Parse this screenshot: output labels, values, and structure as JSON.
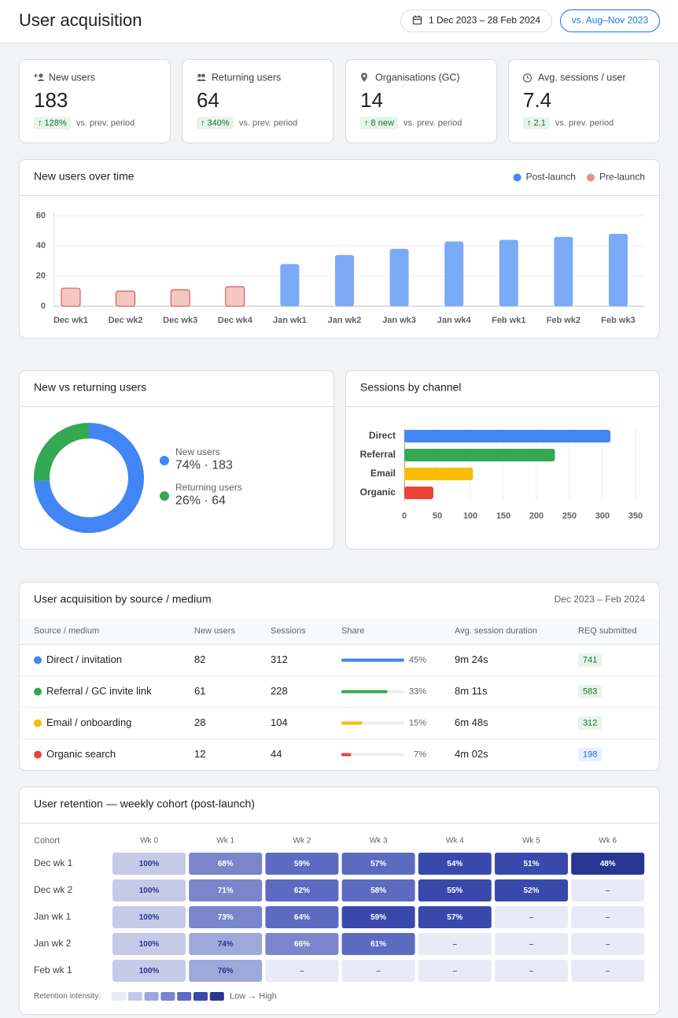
{
  "header": {
    "title": "User acquisition",
    "date_range": "1 Dec 2023 – 28 Feb 2024",
    "compare": "vs. Aug–Nov 2023"
  },
  "kpis": [
    {
      "label": "New users",
      "value": 183,
      "delta": "↑ 128%",
      "note": "vs. prev. period"
    },
    {
      "label": "Returning users",
      "value": 64,
      "delta": "↑ 340%",
      "note": "vs. prev. period"
    },
    {
      "label": "Organisations (GC)",
      "value": 14,
      "delta": "↑ 8 new",
      "note": "vs. prev. period"
    },
    {
      "label": "Avg. sessions / user",
      "value": 7.4,
      "delta": "↑ 2.1",
      "note": "vs. prev. period"
    }
  ],
  "chart_data": [
    {
      "type": "bar",
      "title": "New users over time",
      "categories": [
        "Dec wk1",
        "Dec wk2",
        "Dec wk3",
        "Dec wk4",
        "Jan wk1",
        "Jan wk2",
        "Jan wk3",
        "Jan wk4",
        "Feb wk1",
        "Feb wk2",
        "Feb wk3"
      ],
      "series": [
        {
          "name": "Post-launch",
          "color": "#7baaf7",
          "values": [
            null,
            null,
            null,
            null,
            28,
            34,
            38,
            43,
            44,
            46,
            48
          ]
        },
        {
          "name": "Pre-launch",
          "color": "#f4c7c3",
          "edge_color": "#c5221f",
          "values": [
            12,
            10,
            11,
            13,
            null,
            null,
            null,
            null,
            null,
            null,
            null
          ]
        }
      ],
      "ylim": [
        0,
        60
      ],
      "yticks": [
        0,
        20,
        40,
        60
      ],
      "grid": true,
      "legend": "top-right"
    },
    {
      "type": "pie",
      "donut": true,
      "title": "New vs returning users",
      "categories": [
        "New users",
        "Returning users"
      ],
      "values": [
        74,
        26
      ],
      "value_labels": [
        "74% · 183",
        "26% · 64"
      ],
      "colors": [
        "#4285f4",
        "#34a853"
      ]
    },
    {
      "type": "bar",
      "orientation": "horizontal",
      "title": "Sessions by channel",
      "categories": [
        "Direct",
        "Referral",
        "Email",
        "Organic"
      ],
      "values": [
        312,
        228,
        104,
        44
      ],
      "colors": [
        "#4285f4",
        "#34a853",
        "#fbbc04",
        "#ea4335"
      ],
      "xlim": [
        0,
        350
      ],
      "xticks": [
        0,
        50,
        100,
        150,
        200,
        250,
        300,
        350
      ],
      "grid": true
    },
    {
      "type": "heatmap",
      "title": "User retention — weekly cohort (post-launch)",
      "ylabel": "Cohort",
      "x": [
        "Wk 0",
        "Wk 1",
        "Wk 2",
        "Wk 3",
        "Wk 4",
        "Wk 5",
        "Wk 6"
      ],
      "y": [
        "Dec wk 1",
        "Dec wk 2",
        "Jan wk 1",
        "Jan wk 2",
        "Feb wk 1"
      ],
      "values": [
        [
          100,
          68,
          59,
          57,
          54,
          51,
          48
        ],
        [
          100,
          71,
          62,
          58,
          55,
          52,
          null
        ],
        [
          100,
          73,
          64,
          59,
          57,
          null,
          null
        ],
        [
          100,
          74,
          66,
          61,
          null,
          null,
          null
        ],
        [
          100,
          76,
          null,
          null,
          null,
          null,
          null
        ]
      ],
      "value_labels": [
        [
          "100%",
          "68%",
          "59%",
          "57%",
          "54%",
          "51%",
          "48%"
        ],
        [
          "100%",
          "71%",
          "62%",
          "58%",
          "55%",
          "52%",
          null
        ],
        [
          "100%",
          "73%",
          "64%",
          "59%",
          "57%",
          null,
          null
        ],
        [
          "100%",
          "74%",
          "66%",
          "61%",
          null,
          null,
          null
        ],
        [
          "100%",
          "76%",
          null,
          null,
          null,
          null,
          null
        ]
      ],
      "missing_label": "–",
      "cell_colors": [
        [
          "#c5cae9",
          "#7986cb",
          "#5c6bc0",
          "#5c6bc0",
          "#3949ab",
          "#3949ab",
          "#283593"
        ],
        [
          "#c5cae9",
          "#7986cb",
          "#5c6bc0",
          "#5c6bc0",
          "#3949ab",
          "#3949ab",
          null
        ],
        [
          "#c5cae9",
          "#7986cb",
          "#5c6bc0",
          "#3949ab",
          "#3949ab",
          null,
          null
        ],
        [
          "#c5cae9",
          "#9fa8da",
          "#7986cb",
          "#5c6bc0",
          null,
          null,
          null
        ],
        [
          "#c5cae9",
          "#9fa8da",
          null,
          null,
          null,
          null,
          null
        ]
      ],
      "colors": [
        "#e8eaf6",
        "#c5cae9",
        "#9fa8da",
        "#7986cb",
        "#5c6bc0",
        "#3949ab",
        "#283593"
      ],
      "legend": {
        "title": "Retention intensity:",
        "range": "Low → High"
      }
    }
  ],
  "table": {
    "title": "User acquisition by source / medium",
    "subtitle": "Dec 2023 – Feb 2024",
    "columns": [
      "Source / medium",
      "New users",
      "Sessions",
      "Share",
      "Avg. session duration",
      "REQ submitted"
    ],
    "rows": [
      {
        "source": "Direct / invitation",
        "color": "#4285f4",
        "new_users": 82,
        "sessions": 312,
        "share": {
          "value": 45,
          "label": "45%"
        },
        "duration": "9m 24s",
        "req": 741,
        "badge_bg": "#e6f4ea",
        "badge_fg": "#137333"
      },
      {
        "source": "Referral / GC invite link",
        "color": "#34a853",
        "new_users": 61,
        "sessions": 228,
        "share": {
          "value": 33,
          "label": "33%"
        },
        "duration": "8m 11s",
        "req": 583,
        "badge_bg": "#e6f4ea",
        "badge_fg": "#137333"
      },
      {
        "source": "Email / onboarding",
        "color": "#fbbc04",
        "new_users": 28,
        "sessions": 104,
        "share": {
          "value": 15,
          "label": "15%"
        },
        "duration": "6m 48s",
        "req": 312,
        "badge_bg": "#e6f4ea",
        "badge_fg": "#137333"
      },
      {
        "source": "Organic search",
        "color": "#ea4335",
        "new_users": 12,
        "sessions": 44,
        "share": {
          "value": 7,
          "label": "7%"
        },
        "duration": "4m 02s",
        "req": 198,
        "badge_bg": "#e8f0fe",
        "badge_fg": "#1967d2"
      }
    ]
  }
}
